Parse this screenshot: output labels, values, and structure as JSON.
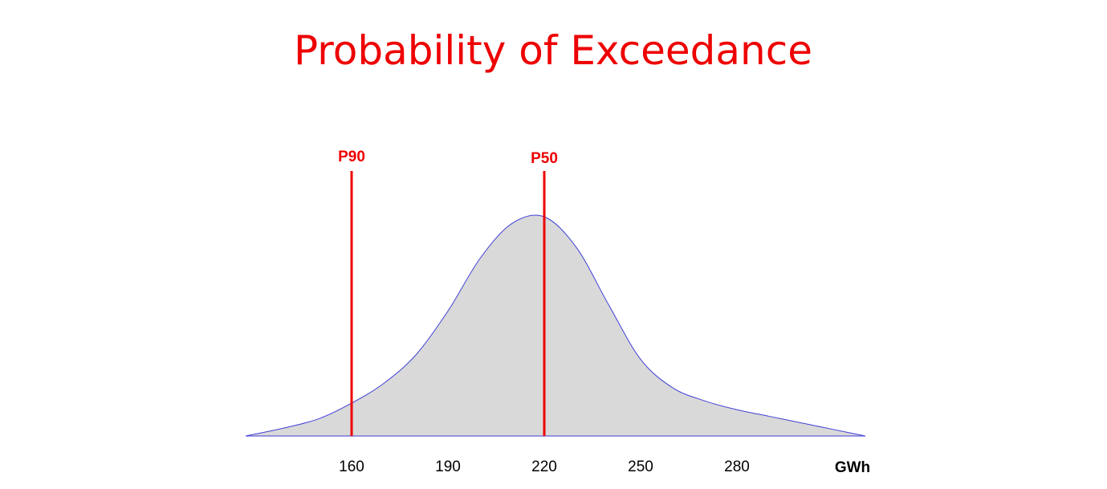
{
  "chart_data": {
    "type": "area",
    "title": "Probability of Exceedance",
    "xlabel": "GWh",
    "ylabel": "",
    "xlim": [
      127,
      320
    ],
    "x_ticks": [
      160,
      190,
      220,
      250,
      280
    ],
    "curve": {
      "x": [
        127,
        140,
        150,
        160,
        170,
        180,
        190,
        200,
        210,
        220,
        230,
        240,
        250,
        260,
        270,
        280,
        290,
        300,
        310,
        320
      ],
      "y": [
        0,
        0.04,
        0.08,
        0.15,
        0.24,
        0.37,
        0.57,
        0.81,
        0.97,
        1.0,
        0.86,
        0.6,
        0.35,
        0.22,
        0.16,
        0.12,
        0.09,
        0.06,
        0.03,
        0
      ]
    },
    "markers": [
      {
        "label": "P90",
        "x": 160
      },
      {
        "label": "P50",
        "x": 220
      }
    ],
    "colors": {
      "title": "#ee0000",
      "fill": "#d9d9d9",
      "curve": "#4040d8",
      "marker": "#ee0000",
      "text": "#000000"
    }
  }
}
